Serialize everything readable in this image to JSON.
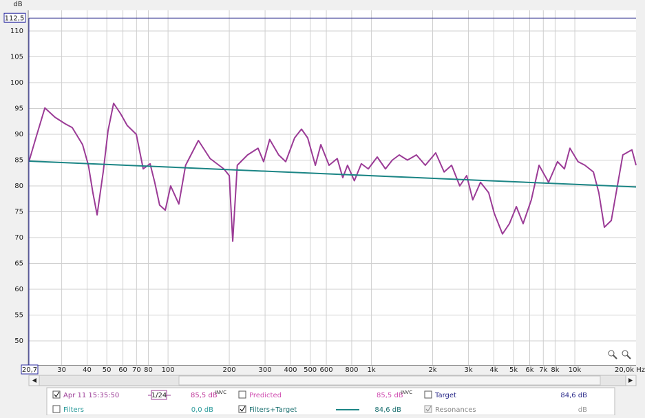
{
  "chart_data": {
    "type": "line",
    "y_axis_label": "dB",
    "xscale": "log",
    "grid": true,
    "xlim": [
      20.7,
      20000
    ],
    "ylim": [
      45.3,
      112.5
    ],
    "xlim_labels": [
      {
        "value": 20.7,
        "label": "20,7"
      },
      {
        "value": 20000,
        "label": "20,0k Hz"
      }
    ],
    "ylim_marker": {
      "value": 112.5,
      "label": "112,5"
    },
    "xticks": [
      30,
      40,
      50,
      60,
      70,
      80,
      100,
      200,
      300,
      400,
      500,
      600,
      800,
      {
        "value": 1000,
        "label": "1k"
      },
      {
        "value": 2000,
        "label": "2k"
      },
      {
        "value": 3000,
        "label": "3k"
      },
      {
        "value": 4000,
        "label": "4k"
      },
      {
        "value": 5000,
        "label": "5k"
      },
      {
        "value": 6000,
        "label": "6k"
      },
      {
        "value": 7000,
        "label": "7k"
      },
      {
        "value": 8000,
        "label": "8k"
      },
      {
        "value": 10000,
        "label": "10k"
      }
    ],
    "yticks": [
      50,
      55,
      60,
      65,
      70,
      75,
      80,
      85,
      90,
      95,
      100,
      105,
      110
    ],
    "series": [
      {
        "name": "Apr 11 15:35:50",
        "color": "#9b3b96",
        "x": [
          20.7,
          22.4,
          24.8,
          27.8,
          31.3,
          33.8,
          38,
          40.6,
          42.7,
          44.8,
          48,
          50.7,
          54,
          58.4,
          63,
          69.8,
          75.5,
          81.6,
          86,
          90.9,
          96.9,
          103,
          113,
          122,
          141,
          161,
          188,
          200,
          208,
          219,
          246,
          277,
          295,
          316,
          350,
          379,
          419,
          453,
          486,
          530,
          564,
          619,
          679,
          723,
          763,
          824,
          892,
          965,
          1068,
          1172,
          1267,
          1370,
          1503,
          1664,
          1840,
          2070,
          2277,
          2478,
          2718,
          2940,
          3150,
          3437,
          3770,
          4016,
          4409,
          4770,
          5158,
          5570,
          6110,
          6670,
          7430,
          8220,
          8890,
          9460,
          10370,
          11220,
          12340,
          13120,
          13970,
          15110,
          17220,
          19090,
          20000
        ],
        "values": [
          84.7,
          89.3,
          95.1,
          93.3,
          92,
          91.3,
          88,
          84,
          78.7,
          74.4,
          82.7,
          90.7,
          96,
          94,
          91.7,
          90,
          83.3,
          84.3,
          80.7,
          76.3,
          75.3,
          80,
          76.5,
          84,
          88.8,
          85.3,
          83.3,
          82,
          69.3,
          84,
          86,
          87.3,
          84.7,
          89,
          86,
          84.7,
          89.3,
          91,
          89.3,
          84,
          88,
          84,
          85.3,
          81.6,
          84,
          81,
          84.3,
          83.3,
          85.6,
          83.3,
          85,
          86,
          85,
          86,
          84,
          86.4,
          82.7,
          84,
          80,
          82,
          77.3,
          80.7,
          78.7,
          74.7,
          70.7,
          72.7,
          76,
          72.7,
          77.3,
          84,
          80.7,
          84.7,
          83.3,
          87.3,
          84.7,
          84,
          82.7,
          78.7,
          72,
          73.3,
          86,
          87,
          84
        ]
      },
      {
        "name": "Filters+Target",
        "color": "#1b8585",
        "x": [
          20.7,
          20000
        ],
        "values": [
          84.8,
          79.8
        ]
      }
    ]
  },
  "legend_panel": {
    "row1": {
      "measurement": "Apr 11 15:35:50",
      "smoothing": "1/24",
      "measurement_level": "85,5 dB",
      "measurement_level_note": "INVC",
      "predicted": "Predicted",
      "predicted_level": "85,5 dB",
      "predicted_level_note": "INVC",
      "target": "Target",
      "target_level": "84,6 dB"
    },
    "row2": {
      "filters": "Filters",
      "filters_level": "0,0 dB",
      "filters_target": "Filters+Target",
      "filters_target_level": "84,6 dB",
      "resonances": "Resonances",
      "resonances_level": "dB"
    }
  }
}
